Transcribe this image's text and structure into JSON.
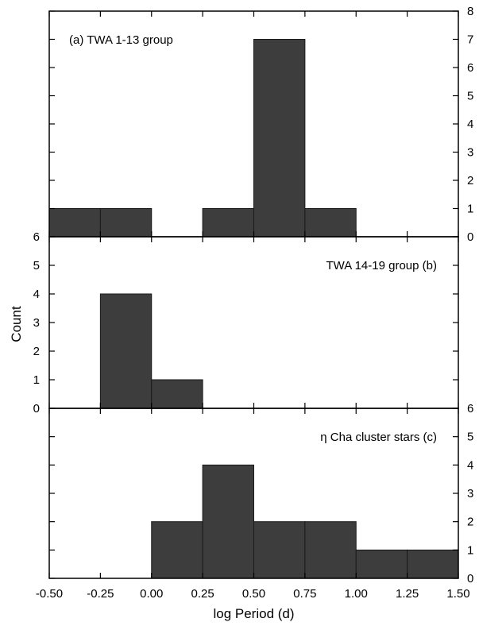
{
  "chart_data": {
    "type": "bar",
    "xlabel": "log Period (d)",
    "ylabel": "Count",
    "xlim": [
      -0.5,
      1.5
    ],
    "x_ticks": [
      "-0.50",
      "-0.25",
      "0.00",
      "0.25",
      "0.50",
      "0.75",
      "1.00",
      "1.25",
      "1.50"
    ],
    "bin_width": 0.25,
    "bar_color": "#3d3d3d",
    "panels": [
      {
        "label": "(a)  TWA 1-13 group",
        "label_position": "top-left",
        "ylim": [
          0,
          8
        ],
        "y_axis_side": "right",
        "y_ticks": [
          "0",
          "1",
          "2",
          "3",
          "4",
          "5",
          "6",
          "7",
          "8"
        ],
        "bins": [
          -0.5,
          -0.25,
          0.0,
          0.25,
          0.5,
          0.75,
          1.0,
          1.25
        ],
        "counts": [
          1,
          1,
          0,
          1,
          7,
          1,
          0,
          0
        ]
      },
      {
        "label": "TWA 14-19 group  (b)",
        "label_position": "top-right",
        "ylim": [
          0,
          6
        ],
        "y_axis_side": "left",
        "y_ticks": [
          "0",
          "1",
          "2",
          "3",
          "4",
          "5",
          "6"
        ],
        "bins": [
          -0.5,
          -0.25,
          0.0,
          0.25,
          0.5,
          0.75,
          1.0,
          1.25
        ],
        "counts": [
          0,
          4,
          1,
          0,
          0,
          0,
          0,
          0
        ]
      },
      {
        "label": "η Cha cluster stars  (c)",
        "label_position": "top-right",
        "ylim": [
          0,
          6
        ],
        "y_axis_side": "right",
        "y_ticks": [
          "0",
          "1",
          "2",
          "3",
          "4",
          "5",
          "6"
        ],
        "bins": [
          -0.5,
          -0.25,
          0.0,
          0.25,
          0.5,
          0.75,
          1.0,
          1.25
        ],
        "counts": [
          0,
          0,
          2,
          4,
          2,
          2,
          1,
          1
        ]
      }
    ]
  }
}
